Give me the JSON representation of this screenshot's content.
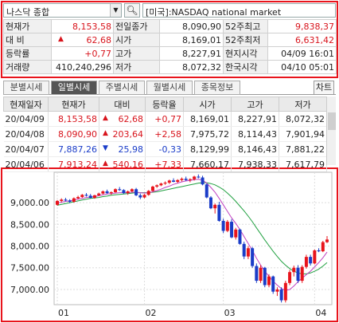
{
  "search": {
    "market_select": "나스닥 종합",
    "market_name": "[미국]:NASDAQ national market"
  },
  "quote": {
    "rows": [
      [
        {
          "l": "현재가"
        },
        {
          "v": "8,153,58",
          "c": "red"
        },
        {
          "l": "전일종가"
        },
        {
          "v": "8,090,90",
          "c": "dark"
        },
        {
          "l": "52주최고"
        },
        {
          "v": "9,838,37",
          "c": "red"
        }
      ],
      [
        {
          "l": "대  비"
        },
        {
          "v": "62,68",
          "c": "red",
          "up": true
        },
        {
          "l": "시가"
        },
        {
          "v": "8,169,01",
          "c": "dark"
        },
        {
          "l": "52주최저"
        },
        {
          "v": "6,631,42",
          "c": "red"
        }
      ],
      [
        {
          "l": "등락률"
        },
        {
          "v": "+0,77",
          "c": "red"
        },
        {
          "l": "고가"
        },
        {
          "v": "8,227,91",
          "c": "dark"
        },
        {
          "l": "현지시각"
        },
        {
          "v": "04/09 16:01",
          "c": "dark"
        }
      ],
      [
        {
          "l": "거래량"
        },
        {
          "v": "410,240,296",
          "c": "dark"
        },
        {
          "l": "저가"
        },
        {
          "v": "8,072,32",
          "c": "dark"
        },
        {
          "l": "한국시각"
        },
        {
          "v": "04/10 05:01",
          "c": "dark"
        }
      ]
    ]
  },
  "tabs": [
    {
      "label": "분별시세",
      "active": false
    },
    {
      "label": "일별시세",
      "active": true
    },
    {
      "label": "주별시세",
      "active": false
    },
    {
      "label": "월별시세",
      "active": false
    },
    {
      "label": "종목정보",
      "active": false
    }
  ],
  "chart_button": "차트",
  "daily": {
    "headers": [
      "현재일자",
      "현재가",
      "대비",
      "등락율",
      "시가",
      "고가",
      "저가"
    ],
    "rows": [
      {
        "date": "20/04/09",
        "close": "8,153,58",
        "chg": "62,68",
        "dir": "up",
        "rate": "+0,77",
        "open": "8,169,01",
        "high": "8,227,91",
        "low": "8,072,32"
      },
      {
        "date": "20/04/08",
        "close": "8,090,90",
        "chg": "203,64",
        "dir": "up",
        "rate": "+2,58",
        "open": "7,975,72",
        "high": "8,114,43",
        "low": "7,901,94"
      },
      {
        "date": "20/04/07",
        "close": "7,887,26",
        "chg": "25,98",
        "dir": "down",
        "rate": "-0,33",
        "open": "8,129,99",
        "high": "8,146,43",
        "low": "7,881,22"
      },
      {
        "date": "20/04/06",
        "close": "7,913,24",
        "chg": "540,16",
        "dir": "up",
        "rate": "+7,33",
        "open": "7,660,17",
        "high": "7,938,33",
        "low": "7,617,79"
      }
    ]
  },
  "chart_data": {
    "type": "candlestick",
    "y_ticks": [
      "9,000.00",
      "8,500.00",
      "8,000.00",
      "7,500.00",
      "7,000.00"
    ],
    "y_tick_values": [
      9000,
      8500,
      8000,
      7500,
      7000
    ],
    "ylim": [
      6650,
      9700
    ],
    "x_ticks": [
      "01",
      "02",
      "03",
      "04"
    ],
    "x_tick_index": [
      0,
      21,
      40,
      62
    ],
    "grid": true,
    "colors": {
      "up": "#e8141c",
      "down": "#1a3cc8",
      "ma_short": "#c040c0",
      "ma_long": "#20a040"
    },
    "candles": [
      [
        8950,
        9060,
        8930,
        9040
      ],
      [
        9040,
        9100,
        9010,
        9070
      ],
      [
        9070,
        9110,
        9030,
        9050
      ],
      [
        9050,
        9080,
        8990,
        9020
      ],
      [
        9020,
        9120,
        9000,
        9100
      ],
      [
        9100,
        9160,
        9080,
        9130
      ],
      [
        9130,
        9200,
        9110,
        9180
      ],
      [
        9180,
        9220,
        9140,
        9160
      ],
      [
        9160,
        9200,
        9100,
        9110
      ],
      [
        9110,
        9180,
        9090,
        9170
      ],
      [
        9170,
        9230,
        9150,
        9210
      ],
      [
        9210,
        9280,
        9190,
        9260
      ],
      [
        9260,
        9300,
        9200,
        9220
      ],
      [
        9220,
        9260,
        9180,
        9240
      ],
      [
        9240,
        9330,
        9230,
        9310
      ],
      [
        9310,
        9360,
        9270,
        9290
      ],
      [
        9290,
        9310,
        9200,
        9220
      ],
      [
        9220,
        9280,
        9180,
        9260
      ],
      [
        9260,
        9330,
        9240,
        9310
      ],
      [
        9310,
        9340,
        9150,
        9170
      ],
      [
        9170,
        9210,
        9080,
        9120
      ],
      [
        9120,
        9200,
        9100,
        9180
      ],
      [
        9180,
        9290,
        9160,
        9270
      ],
      [
        9270,
        9390,
        9250,
        9370
      ],
      [
        9370,
        9420,
        9340,
        9400
      ],
      [
        9400,
        9460,
        9380,
        9440
      ],
      [
        9440,
        9490,
        9410,
        9460
      ],
      [
        9460,
        9530,
        9430,
        9510
      ],
      [
        9510,
        9560,
        9470,
        9480
      ],
      [
        9480,
        9540,
        9450,
        9520
      ],
      [
        9520,
        9580,
        9490,
        9550
      ],
      [
        9550,
        9600,
        9500,
        9520
      ],
      [
        9520,
        9560,
        9470,
        9540
      ],
      [
        9540,
        9620,
        9510,
        9600
      ],
      [
        9600,
        9650,
        9560,
        9580
      ],
      [
        9580,
        9620,
        9400,
        9420
      ],
      [
        9420,
        9440,
        9100,
        9120
      ],
      [
        9120,
        9150,
        8850,
        8870
      ],
      [
        8870,
        8980,
        8750,
        8950
      ],
      [
        8950,
        9020,
        8560,
        8580
      ],
      [
        8580,
        8630,
        8300,
        8350
      ],
      [
        8350,
        8600,
        8320,
        8560
      ],
      [
        8560,
        8620,
        8180,
        8200
      ],
      [
        8200,
        8420,
        8150,
        8380
      ],
      [
        8380,
        8400,
        8030,
        8050
      ],
      [
        8050,
        8100,
        7700,
        7760
      ],
      [
        7760,
        8000,
        7700,
        7950
      ],
      [
        7950,
        7980,
        7500,
        7540
      ],
      [
        7540,
        7600,
        7150,
        7200
      ],
      [
        7200,
        7560,
        7150,
        7500
      ],
      [
        7500,
        7520,
        7050,
        7100
      ],
      [
        7100,
        7350,
        7050,
        7300
      ],
      [
        7300,
        7320,
        6900,
        6950
      ],
      [
        6950,
        7050,
        6850,
        7000
      ],
      [
        7000,
        7050,
        6700,
        6750
      ],
      [
        6750,
        7200,
        6700,
        7150
      ],
      [
        7150,
        7450,
        7100,
        7400
      ],
      [
        7400,
        7550,
        7300,
        7500
      ],
      [
        7500,
        7560,
        7150,
        7200
      ],
      [
        7200,
        7560,
        7150,
        7520
      ],
      [
        7520,
        7800,
        7480,
        7750
      ],
      [
        7750,
        7800,
        7550,
        7600
      ],
      [
        7600,
        7920,
        7580,
        7900
      ],
      [
        7900,
        7950,
        7860,
        7880
      ],
      [
        7880,
        8120,
        7860,
        8090
      ],
      [
        8090,
        8230,
        8070,
        8150
      ]
    ],
    "ma_short": [
      8990,
      9010,
      9030,
      9040,
      9060,
      9080,
      9100,
      9120,
      9130,
      9140,
      9160,
      9180,
      9200,
      9210,
      9220,
      9230,
      9230,
      9230,
      9240,
      9240,
      9230,
      9220,
      9230,
      9250,
      9280,
      9310,
      9350,
      9380,
      9420,
      9450,
      9480,
      9500,
      9510,
      9530,
      9540,
      9520,
      9450,
      9350,
      9240,
      9100,
      8950,
      8800,
      8650,
      8520,
      8380,
      8220,
      8060,
      7900,
      7720,
      7560,
      7420,
      7300,
      7190,
      7100,
      7020,
      6980,
      7000,
      7080,
      7180,
      7260,
      7340,
      7420,
      7520,
      7620,
      7730,
      7860
    ],
    "ma_long": [
      8940,
      8960,
      8980,
      9000,
      9020,
      9040,
      9060,
      9080,
      9100,
      9110,
      9120,
      9140,
      9150,
      9170,
      9180,
      9190,
      9200,
      9210,
      9220,
      9230,
      9230,
      9230,
      9230,
      9240,
      9250,
      9270,
      9290,
      9310,
      9330,
      9350,
      9370,
      9390,
      9410,
      9430,
      9450,
      9460,
      9460,
      9440,
      9410,
      9360,
      9300,
      9220,
      9130,
      9030,
      8920,
      8810,
      8690,
      8560,
      8420,
      8280,
      8140,
      8010,
      7880,
      7760,
      7650,
      7560,
      7480,
      7420,
      7380,
      7360,
      7360,
      7380,
      7420,
      7470,
      7540,
      7620
    ]
  }
}
